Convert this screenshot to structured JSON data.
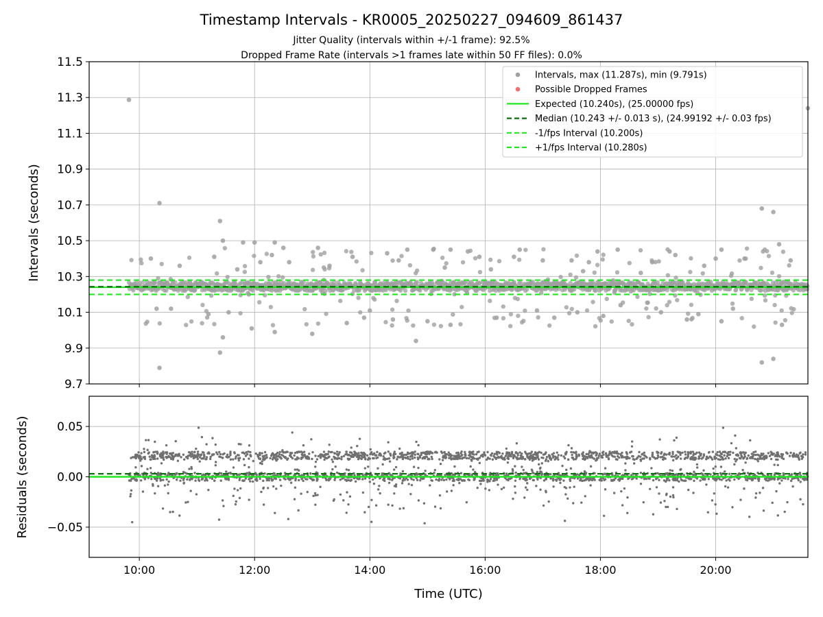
{
  "figure": {
    "title": "Timestamp Intervals - KR0005_20250227_094609_861437",
    "subtitle_line1": "Jitter Quality (intervals within +/-1 frame): 92.5%",
    "subtitle_line2": "Dropped Frame Rate (intervals >1 frames late within 50 FF files): 0.0%"
  },
  "chart_data": [
    {
      "type": "scatter",
      "panel": "intervals",
      "ylabel": "Intervals (seconds)",
      "ylim": [
        9.7,
        11.5
      ],
      "yticks": [
        "9.7",
        "9.9",
        "10.1",
        "10.3",
        "10.5",
        "10.7",
        "10.9",
        "11.1",
        "11.3",
        "11.5"
      ],
      "xlim_hours": [
        9.13,
        21.6
      ],
      "grid": true,
      "legend_position": "upper-right",
      "legend": [
        {
          "label": "Intervals, max (11.287s), min (9.791s)",
          "kind": "marker",
          "color": "#a0a0a0"
        },
        {
          "label": "Possible Dropped Frames",
          "kind": "marker",
          "color": "#f07070"
        },
        {
          "label": "Expected (10.240s), (25.00000 fps)",
          "kind": "solid",
          "color": "#1ee81e"
        },
        {
          "label": "Median (10.243 +/- 0.013 s), (24.99192 +/- 0.03 fps)",
          "kind": "dashed",
          "color": "#0a6e0a"
        },
        {
          "label": "-1/fps Interval (10.200s)",
          "kind": "dashed",
          "color": "#1ee81e"
        },
        {
          "label": "+1/fps Interval (10.280s)",
          "kind": "dashed",
          "color": "#1ee81e"
        }
      ],
      "reference_lines": {
        "expected": 10.24,
        "median": 10.243,
        "minus_one_frame": 10.2,
        "plus_one_frame": 10.28
      },
      "series": [
        {
          "name": "Intervals",
          "color": "#a0a0a0",
          "main_band": [
            10.22,
            10.27
          ],
          "outliers": [
            [
              9.82,
              11.287
            ],
            [
              10.35,
              10.71
            ],
            [
              10.35,
              9.79
            ],
            [
              11.4,
              10.61
            ],
            [
              11.4,
              9.875
            ],
            [
              11.45,
              9.96
            ],
            [
              11.45,
              10.5
            ],
            [
              11.7,
              10.34
            ],
            [
              11.8,
              10.49
            ],
            [
              12.0,
              10.49
            ],
            [
              12.35,
              10.49
            ],
            [
              12.35,
              9.99
            ],
            [
              12.3,
              10.42
            ],
            [
              11.95,
              10.01
            ],
            [
              12.5,
              10.46
            ],
            [
              13.1,
              10.46
            ],
            [
              13.0,
              9.98
            ],
            [
              13.7,
              10.41
            ],
            [
              14.3,
              10.43
            ],
            [
              14.65,
              10.45
            ],
            [
              14.8,
              9.94
            ],
            [
              15.1,
              10.45
            ],
            [
              15.4,
              10.45
            ],
            [
              15.4,
              10.03
            ],
            [
              15.7,
              10.44
            ],
            [
              16.5,
              10.41
            ],
            [
              16.6,
              10.45
            ],
            [
              17.0,
              10.39
            ],
            [
              17.5,
              10.39
            ],
            [
              17.7,
              10.33
            ],
            [
              17.8,
              10.38
            ],
            [
              17.95,
              10.44
            ],
            [
              18.05,
              10.08
            ],
            [
              18.3,
              10.45
            ],
            [
              18.35,
              10.14
            ],
            [
              18.9,
              10.38
            ],
            [
              19.2,
              10.44
            ],
            [
              19.3,
              10.42
            ],
            [
              19.5,
              10.06
            ],
            [
              19.8,
              10.36
            ],
            [
              20.0,
              10.4
            ],
            [
              20.1,
              10.45
            ],
            [
              20.1,
              10.05
            ],
            [
              20.5,
              10.4
            ],
            [
              20.8,
              10.68
            ],
            [
              20.8,
              9.82
            ],
            [
              21.0,
              10.66
            ],
            [
              21.0,
              9.84
            ],
            [
              21.1,
              10.48
            ],
            [
              21.15,
              10.03
            ],
            [
              21.6,
              11.24
            ],
            [
              10.55,
              10.12
            ],
            [
              10.7,
              10.36
            ],
            [
              11.3,
              10.41
            ],
            [
              11.55,
              10.1
            ],
            [
              12.6,
              10.38
            ],
            [
              13.3,
              10.36
            ],
            [
              13.6,
              10.04
            ],
            [
              14.0,
              10.11
            ],
            [
              14.5,
              10.39
            ],
            [
              15.0,
              10.05
            ],
            [
              15.3,
              10.35
            ],
            [
              15.9,
              10.41
            ],
            [
              16.2,
              10.07
            ],
            [
              16.9,
              10.11
            ],
            [
              17.2,
              10.07
            ],
            [
              19.05,
              10.1
            ],
            [
              19.7,
              10.09
            ],
            [
              20.3,
              10.12
            ],
            [
              21.3,
              10.39
            ],
            [
              10.2,
              10.4
            ],
            [
              10.3,
              10.12
            ],
            [
              11.2,
              10.09
            ],
            [
              11.9,
              10.2
            ],
            [
              12.1,
              10.38
            ],
            [
              13.9,
              10.07
            ],
            [
              14.4,
              10.06
            ],
            [
              16.1,
              10.34
            ],
            [
              17.6,
              10.1
            ],
            [
              18.7,
              10.32
            ]
          ]
        }
      ]
    },
    {
      "type": "scatter",
      "panel": "residuals",
      "xlabel": "Time (UTC)",
      "ylabel": "Residuals (seconds)",
      "ylim": [
        -0.08,
        0.08
      ],
      "yticks": [
        "−0.05",
        "0.00",
        "0.05"
      ],
      "xlim_hours": [
        9.13,
        21.6
      ],
      "xticks": [
        "10:00",
        "12:00",
        "14:00",
        "16:00",
        "18:00",
        "20:00"
      ],
      "grid": true,
      "reference_lines": {
        "zero": 0.0,
        "median_residual": 0.003
      },
      "series": [
        {
          "name": "Residuals",
          "color": "#707070",
          "band_upper": 0.021,
          "band_lower": 0.0,
          "spread": 0.025
        }
      ]
    }
  ],
  "colors": {
    "interval_points": "#a0a0a0",
    "residual_points": "#707070",
    "dropped": "#f07070",
    "expected": "#1ee81e",
    "median": "#0a6e0a",
    "grid": "#b0b0b0"
  }
}
